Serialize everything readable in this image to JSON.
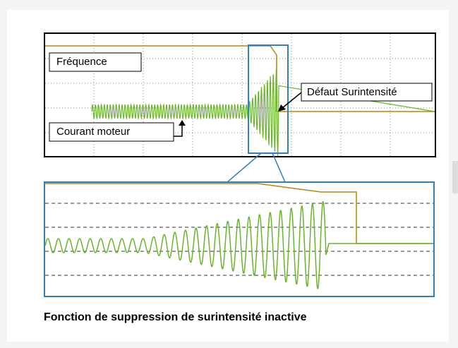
{
  "top_scope": {
    "labels": {
      "frequency": "Fréquence",
      "current": "Courant moteur",
      "fault": "Défaut Surintensité"
    }
  },
  "caption": "Fonction de suppression de surintensité inactive"
}
